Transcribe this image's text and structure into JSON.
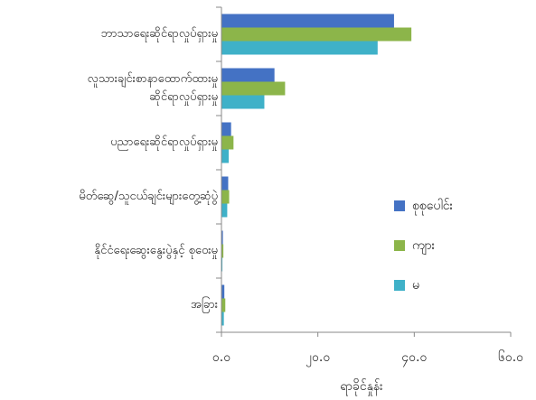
{
  "chart_data": {
    "type": "bar",
    "orientation": "horizontal",
    "categories": [
      "ဘာသာရေးဆိုင်ရာလှုပ်ရှားမှု",
      "လူသားချင်းစာနာထောက်ထားမှု ဆိုင်ရာလှုပ်ရှားမှု",
      "ပညာရေးဆိုင်ရာလှုပ်ရှားမှု",
      "မိတ်ဆွေ/သူငယ်ချင်းများတွေ့ဆုံပွဲ",
      "နိုင်ငံရေးဆွေးနွေးပွဲနှင့် စုဝေးမှု",
      "အခြား"
    ],
    "series": [
      {
        "name": "စုစုပေါင်း",
        "color": "#4472c4",
        "values": [
          35.8,
          11.0,
          2.0,
          1.4,
          0.3,
          0.6
        ]
      },
      {
        "name": "ကျား",
        "color": "#8cb54a",
        "values": [
          39.4,
          13.2,
          2.5,
          1.6,
          0.4,
          0.8
        ]
      },
      {
        "name": "မ",
        "color": "#3fb1c8",
        "values": [
          32.4,
          8.9,
          1.5,
          1.2,
          0.2,
          0.5
        ]
      }
    ],
    "xlim": [
      0,
      60
    ],
    "xticks": [
      "၀.၀",
      "၂၀.၀",
      "၄၀.၀",
      "၆၀.၀"
    ],
    "xlabel": "ရာခိုင်နှုန်း",
    "ylabel": "",
    "grid": false,
    "legend_position": "right"
  }
}
